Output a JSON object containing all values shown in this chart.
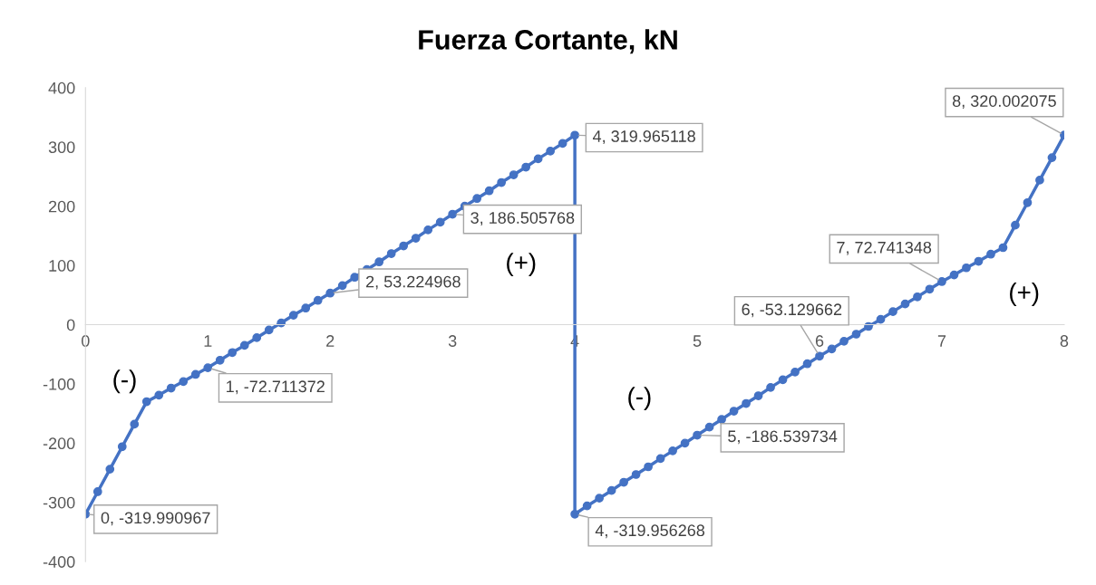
{
  "chart_data": {
    "type": "line",
    "title": "Fuerza Cortante, kN",
    "x": [
      0,
      0.1,
      0.2,
      0.3,
      0.4,
      0.5,
      0.6,
      0.7,
      0.8,
      0.9,
      1,
      1.1,
      1.2,
      1.3,
      1.4,
      1.5,
      1.6,
      1.7,
      1.8,
      1.9,
      2,
      2.1,
      2.2,
      2.3,
      2.4,
      2.5,
      2.6,
      2.7,
      2.8,
      2.9,
      3,
      3.1,
      3.2,
      3.3,
      3.4,
      3.5,
      3.6,
      3.7,
      3.8,
      3.9,
      4,
      4,
      4.1,
      4.2,
      4.3,
      4.4,
      4.5,
      4.6,
      4.7,
      4.8,
      4.9,
      5,
      5.1,
      5.2,
      5.3,
      5.4,
      5.5,
      5.6,
      5.7,
      5.8,
      5.9,
      6,
      6.1,
      6.2,
      6.3,
      6.4,
      6.5,
      6.6,
      6.7,
      6.8,
      6.9,
      7,
      7.1,
      7.2,
      7.3,
      7.4,
      7.5,
      7.6,
      7.7,
      7.8,
      7.9,
      8
    ],
    "series": [
      {
        "color": "#4472c4",
        "values": [
          -319.990967,
          -282,
          -244,
          -206,
          -168,
          -130,
          -119,
          -107,
          -96,
          -84,
          -72.711372,
          -60,
          -47,
          -35,
          -22,
          -9,
          3,
          16,
          28,
          41,
          53.224968,
          66,
          80,
          93,
          106,
          120,
          133,
          146,
          160,
          173,
          186.505768,
          200,
          213,
          226,
          240,
          253,
          266,
          280,
          293,
          306,
          319.965118,
          -319.956268,
          -306,
          -293,
          -280,
          -266,
          -253,
          -240,
          -226,
          -213,
          -200,
          -186.539734,
          -173,
          -160,
          -146,
          -133,
          -120,
          -106,
          -93,
          -80,
          -66,
          -53.129662,
          -41,
          -28,
          -16,
          -3,
          9,
          22,
          35,
          47,
          60,
          72.741348,
          84,
          96,
          107,
          119,
          130,
          168,
          206,
          244,
          282,
          320.002075
        ]
      }
    ],
    "xlim": [
      0,
      8
    ],
    "xticks": [
      0,
      1,
      2,
      3,
      4,
      5,
      6,
      7,
      8
    ],
    "ylim": [
      -400,
      400
    ],
    "yticks": [
      -400,
      -300,
      -200,
      -100,
      0,
      100,
      200,
      300,
      400
    ],
    "grid": false,
    "marker": "circle",
    "line_style": "solid",
    "annotations": [
      {
        "text": "0, -319.990967",
        "x": 0,
        "y": -319.990967
      },
      {
        "text": "1, -72.711372",
        "x": 1,
        "y": -72.711372
      },
      {
        "text": "2, 53.224968",
        "x": 2,
        "y": 53.224968
      },
      {
        "text": "3, 186.505768",
        "x": 3,
        "y": 186.505768
      },
      {
        "text": "4, 319.965118",
        "x": 4,
        "y": 319.965118
      },
      {
        "text": "4, -319.956268",
        "x": 4,
        "y": -319.956268
      },
      {
        "text": "5, -186.539734",
        "x": 5,
        "y": -186.539734
      },
      {
        "text": "6, -53.129662",
        "x": 6,
        "y": -53.129662
      },
      {
        "text": "7, 72.741348",
        "x": 7,
        "y": 72.741348
      },
      {
        "text": "8, 320.002075",
        "x": 8,
        "y": 320.002075
      },
      "(-)",
      "(+)",
      "(-)",
      "(+)"
    ]
  }
}
